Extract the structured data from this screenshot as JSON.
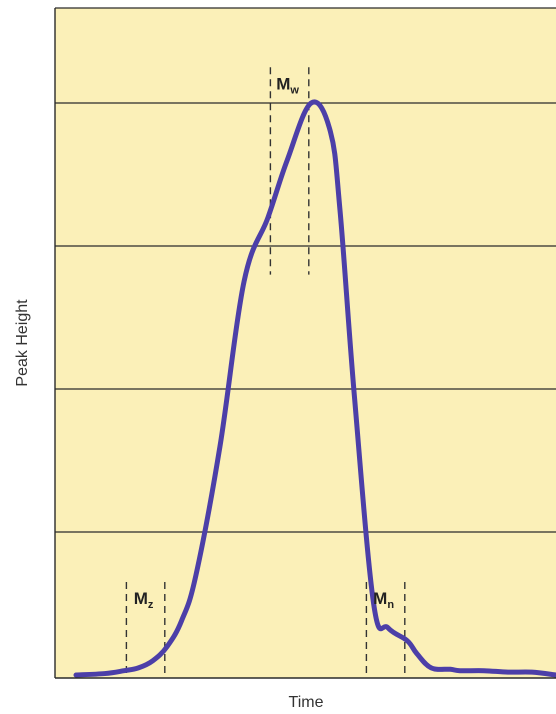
{
  "chart_data": {
    "type": "line",
    "title": "",
    "xlabel": "Time",
    "ylabel": "Peak Height",
    "x_ticks_shown": false,
    "y_ticks_shown": false,
    "grid": "horizontal",
    "ylim": [
      0,
      4
    ],
    "xlim": [
      0,
      10
    ],
    "horizontal_gridlines": [
      1,
      2,
      3,
      4
    ],
    "colors": {
      "plot_background": "#fbf0b8",
      "curve": "#4c3fa8",
      "gridline": "#2a2a2a",
      "marker_line": "#333333"
    },
    "series": [
      {
        "x": [
          0.0,
          0.6,
          1.0,
          1.3,
          1.6,
          1.9,
          2.2,
          2.5,
          3.0,
          3.5,
          4.0,
          4.4,
          4.9,
          5.3,
          5.5,
          5.8,
          6.2,
          6.5,
          6.9,
          7.1,
          7.4,
          7.8,
          8.0,
          8.5,
          9.0,
          9.5,
          10.0
        ],
        "y": [
          0.0,
          0.01,
          0.03,
          0.05,
          0.1,
          0.2,
          0.38,
          0.7,
          1.6,
          2.75,
          3.2,
          3.6,
          4.0,
          3.8,
          3.25,
          1.95,
          0.5,
          0.33,
          0.24,
          0.15,
          0.05,
          0.04,
          0.03,
          0.03,
          0.02,
          0.02,
          0.0
        ]
      }
    ],
    "markers": [
      {
        "label": "M",
        "subscript": "z",
        "x_left": 1.05,
        "x_right": 1.85,
        "y_bottom": 0.0,
        "y_top": 0.65
      },
      {
        "label": "M",
        "subscript": "w",
        "x_left": 4.05,
        "x_right": 4.85,
        "y_bottom": 2.8,
        "y_top": 4.25
      },
      {
        "label": "M",
        "subscript": "n",
        "x_left": 6.05,
        "x_right": 6.85,
        "y_bottom": 0.0,
        "y_top": 0.65
      }
    ]
  }
}
